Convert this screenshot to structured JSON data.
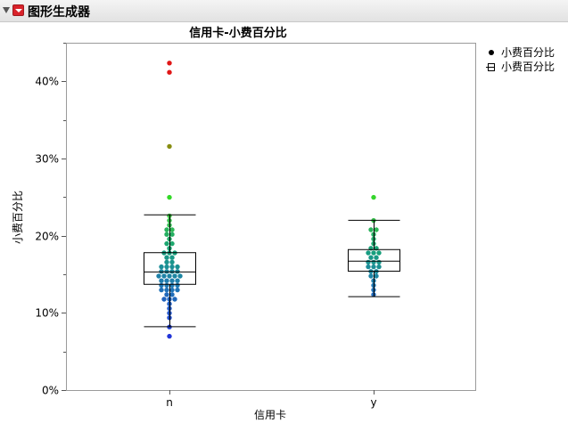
{
  "panel": {
    "title": "图形生成器",
    "collapse_icon": "disclosure-triangle-icon",
    "menu_icon": "red-menu-icon"
  },
  "chart_data": {
    "type": "scatter",
    "title": "信用卡-小费百分比",
    "xlabel": "信用卡",
    "ylabel": "小费百分比",
    "categories": [
      "n",
      "y"
    ],
    "ylim": [
      0,
      0.45
    ],
    "yticks": [
      {
        "value": 0,
        "label": "0%"
      },
      {
        "value": 0.1,
        "label": "10%"
      },
      {
        "value": 0.2,
        "label": "20%"
      },
      {
        "value": 0.3,
        "label": "30%"
      },
      {
        "value": 0.4,
        "label": "40%"
      }
    ],
    "grid": false,
    "legend_position": "right",
    "legend": [
      "小费百分比",
      "小费百分比"
    ],
    "color_gradient": [
      "#2235d8",
      "#1f7db0",
      "#16a07a",
      "#3ec63e",
      "#2ee01e",
      "#8a8a10",
      "#e01616"
    ],
    "boxes": [
      {
        "category": "n",
        "whisker_low": 0.082,
        "q1": 0.137,
        "median": 0.153,
        "q3": 0.178,
        "whisker_high": 0.227
      },
      {
        "category": "y",
        "whisker_low": 0.121,
        "q1": 0.154,
        "median": 0.167,
        "q3": 0.182,
        "whisker_high": 0.22
      }
    ],
    "points": {
      "n": [
        0.067,
        0.082,
        0.093,
        0.1,
        0.105,
        0.11,
        0.115,
        0.116,
        0.12,
        0.121,
        0.125,
        0.127,
        0.128,
        0.13,
        0.13,
        0.133,
        0.135,
        0.136,
        0.137,
        0.14,
        0.14,
        0.142,
        0.143,
        0.145,
        0.147,
        0.148,
        0.15,
        0.15,
        0.152,
        0.153,
        0.155,
        0.155,
        0.158,
        0.16,
        0.16,
        0.162,
        0.165,
        0.167,
        0.17,
        0.172,
        0.175,
        0.178,
        0.18,
        0.185,
        0.188,
        0.19,
        0.195,
        0.2,
        0.2,
        0.205,
        0.21,
        0.215,
        0.22,
        0.227,
        0.252,
        0.318,
        0.41,
        0.421
      ],
      "y": [
        0.121,
        0.128,
        0.135,
        0.142,
        0.148,
        0.15,
        0.153,
        0.155,
        0.157,
        0.16,
        0.162,
        0.164,
        0.166,
        0.168,
        0.17,
        0.172,
        0.175,
        0.178,
        0.18,
        0.182,
        0.185,
        0.19,
        0.195,
        0.2,
        0.205,
        0.21,
        0.22,
        0.247
      ]
    }
  }
}
